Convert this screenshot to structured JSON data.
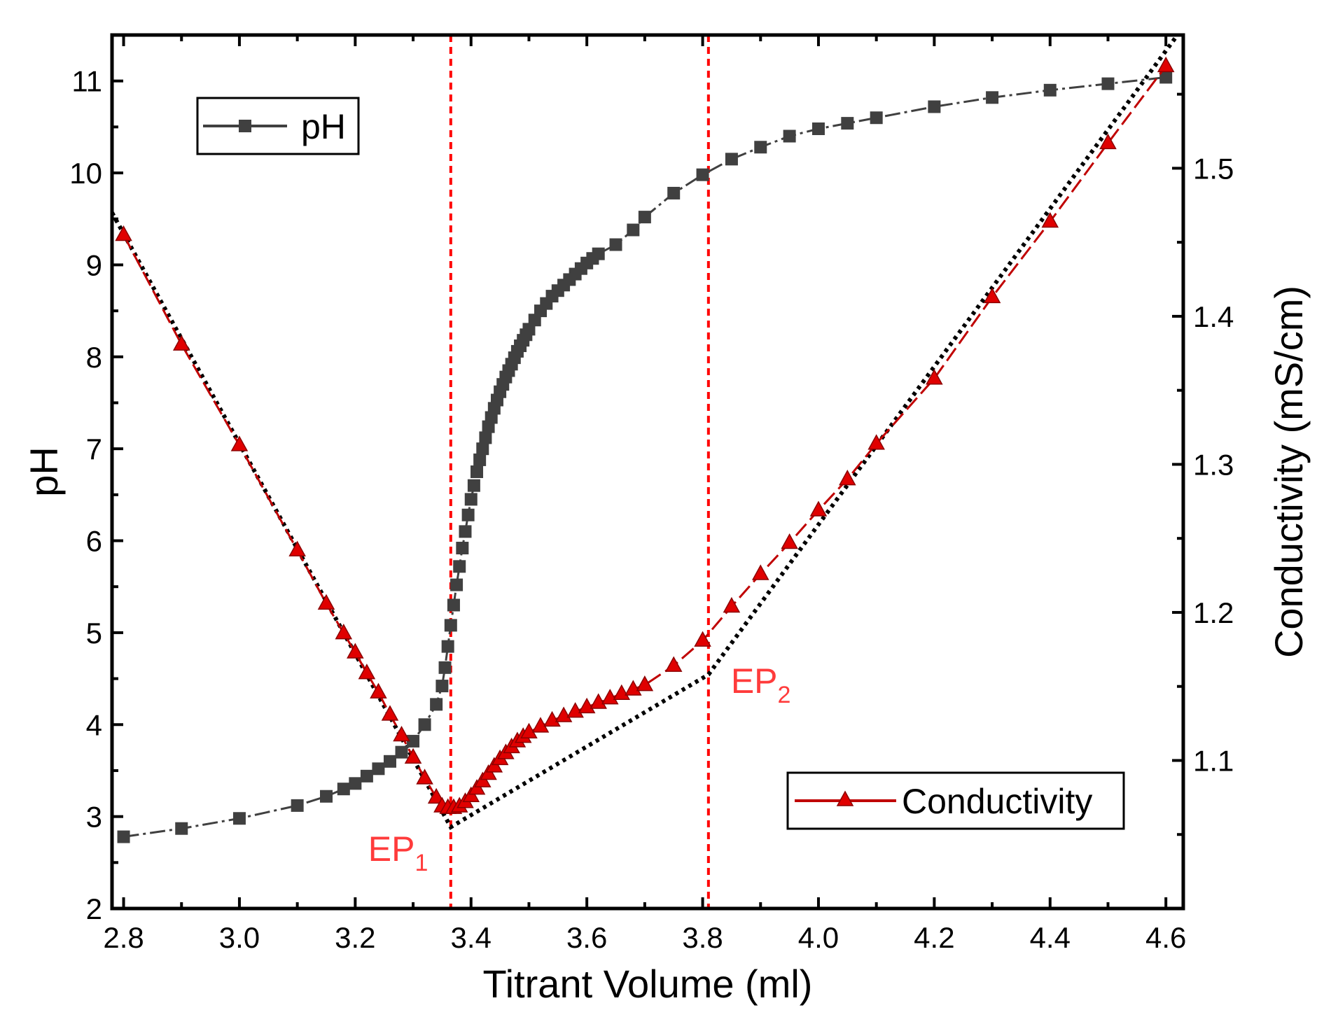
{
  "chart_data": {
    "type": "line",
    "title": "",
    "xlabel": "Titrant Volume (ml)",
    "ylabel": "pH",
    "y2label": "Conductivity (mS/cm)",
    "xlim": [
      2.78,
      4.63
    ],
    "ylim": [
      2,
      11.5
    ],
    "y2lim": [
      1.0,
      1.59
    ],
    "x_ticks": [
      "2.8",
      "3.0",
      "3.2",
      "3.4",
      "3.6",
      "3.8",
      "4.0",
      "4.2",
      "4.4",
      "4.6"
    ],
    "x_tick_values": [
      2.8,
      3.0,
      3.2,
      3.4,
      3.6,
      3.8,
      4.0,
      4.2,
      4.4,
      4.6
    ],
    "y_ticks": [
      "2",
      "3",
      "4",
      "5",
      "6",
      "7",
      "8",
      "9",
      "10",
      "11"
    ],
    "y_tick_values": [
      2,
      3,
      4,
      5,
      6,
      7,
      8,
      9,
      10,
      11
    ],
    "y2_ticks": [
      "1.1",
      "1.2",
      "1.3",
      "1.4",
      "1.5"
    ],
    "y2_tick_values": [
      1.1,
      1.2,
      1.3,
      1.4,
      1.5
    ],
    "colors": {
      "ph": "#404040",
      "conductivity": "#c00000",
      "ep_line": "#ff0000",
      "ep_text": "#ff3b3b",
      "fit": "#000000"
    },
    "series": [
      {
        "name": "pH",
        "axis": "left",
        "marker": "square",
        "x": [
          2.8,
          2.9,
          3.0,
          3.1,
          3.15,
          3.18,
          3.2,
          3.22,
          3.24,
          3.26,
          3.28,
          3.3,
          3.32,
          3.34,
          3.35,
          3.355,
          3.36,
          3.365,
          3.37,
          3.375,
          3.38,
          3.385,
          3.39,
          3.395,
          3.4,
          3.405,
          3.41,
          3.415,
          3.42,
          3.425,
          3.43,
          3.435,
          3.44,
          3.445,
          3.45,
          3.455,
          3.46,
          3.465,
          3.47,
          3.475,
          3.48,
          3.485,
          3.49,
          3.495,
          3.5,
          3.51,
          3.52,
          3.53,
          3.54,
          3.55,
          3.56,
          3.57,
          3.58,
          3.59,
          3.6,
          3.61,
          3.62,
          3.65,
          3.68,
          3.7,
          3.75,
          3.8,
          3.85,
          3.9,
          3.95,
          4.0,
          4.05,
          4.1,
          4.2,
          4.3,
          4.4,
          4.5,
          4.6
        ],
        "values": [
          2.78,
          2.87,
          2.98,
          3.12,
          3.22,
          3.3,
          3.36,
          3.44,
          3.52,
          3.6,
          3.7,
          3.82,
          4.0,
          4.22,
          4.42,
          4.62,
          4.85,
          5.08,
          5.3,
          5.52,
          5.72,
          5.92,
          6.1,
          6.28,
          6.45,
          6.6,
          6.75,
          6.88,
          7.0,
          7.12,
          7.24,
          7.34,
          7.44,
          7.53,
          7.62,
          7.7,
          7.78,
          7.85,
          7.92,
          7.99,
          8.06,
          8.12,
          8.18,
          8.24,
          8.3,
          8.4,
          8.5,
          8.58,
          8.66,
          8.72,
          8.78,
          8.84,
          8.9,
          8.96,
          9.02,
          9.07,
          9.12,
          9.22,
          9.38,
          9.52,
          9.78,
          9.98,
          10.15,
          10.28,
          10.4,
          10.48,
          10.54,
          10.6,
          10.72,
          10.82,
          10.9,
          10.97,
          11.04
        ]
      },
      {
        "name": "Conductivity",
        "axis": "right",
        "marker": "triangle",
        "x": [
          2.8,
          2.9,
          3.0,
          3.1,
          3.15,
          3.18,
          3.2,
          3.22,
          3.24,
          3.26,
          3.28,
          3.3,
          3.32,
          3.34,
          3.35,
          3.36,
          3.37,
          3.38,
          3.39,
          3.4,
          3.41,
          3.42,
          3.43,
          3.44,
          3.45,
          3.46,
          3.47,
          3.48,
          3.49,
          3.5,
          3.52,
          3.54,
          3.56,
          3.58,
          3.6,
          3.62,
          3.64,
          3.66,
          3.68,
          3.7,
          3.75,
          3.8,
          3.85,
          3.9,
          3.95,
          4.0,
          4.05,
          4.1,
          4.2,
          4.3,
          4.4,
          4.5,
          4.6
        ],
        "values": [
          1.455,
          1.381,
          1.313,
          1.242,
          1.206,
          1.186,
          1.173,
          1.159,
          1.146,
          1.131,
          1.117,
          1.102,
          1.088,
          1.075,
          1.069,
          1.068,
          1.068,
          1.069,
          1.072,
          1.076,
          1.081,
          1.086,
          1.091,
          1.096,
          1.101,
          1.105,
          1.109,
          1.113,
          1.116,
          1.119,
          1.123,
          1.127,
          1.13,
          1.133,
          1.136,
          1.139,
          1.142,
          1.145,
          1.148,
          1.151,
          1.164,
          1.181,
          1.204,
          1.226,
          1.247,
          1.269,
          1.29,
          1.314,
          1.358,
          1.413,
          1.464,
          1.517,
          1.569
        ]
      },
      {
        "name": "Linear fit",
        "axis": "right",
        "marker": "none",
        "x": [
          2.78,
          3.365,
          3.81,
          4.62
        ],
        "values": [
          1.47,
          1.055,
          1.158,
          1.59
        ]
      }
    ],
    "end_points": [
      {
        "label": "EP",
        "subscript": "1",
        "x": 3.365
      },
      {
        "label": "EP",
        "subscript": "2",
        "x": 3.81
      }
    ],
    "legend": [
      {
        "label": "pH",
        "placement": "top-left"
      },
      {
        "label": "Conductivity",
        "placement": "bottom-right"
      }
    ]
  }
}
